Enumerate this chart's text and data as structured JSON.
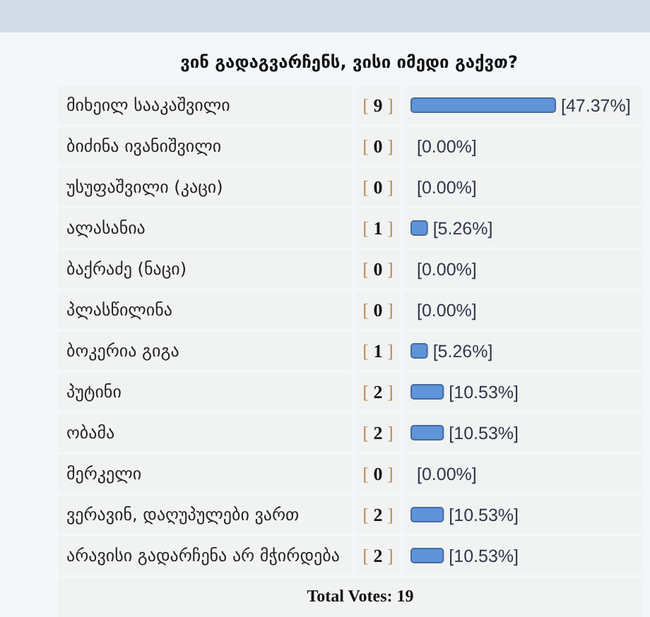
{
  "chart_data": {
    "type": "bar",
    "orientation": "horizontal",
    "title": "ვინ გადაგვარჩენს, ვისი იმედი გაქვთ?",
    "categories": [
      "მიხეილ სააკაშვილი",
      "ბიძინა ივანიშვილი",
      "უსუფაშვილი (კაცი)",
      "ალასანია",
      "ბაქრაძე (ნაცი)",
      "პლასწილინა",
      "ბოკერია გიგა",
      "პუტინი",
      "ობამა",
      "მერკელი",
      "ვერავინ, დაღუპულები ვართ",
      "არავისი გადარჩენა არ მჭირდება"
    ],
    "values": [
      9,
      0,
      0,
      1,
      0,
      0,
      1,
      2,
      2,
      0,
      2,
      2
    ],
    "color": "#5f94d9",
    "value_labels": [
      "[ 9 ]",
      "[ 0 ]",
      "[ 0 ]",
      "[ 1 ]",
      "[ 0 ]",
      "[ 0 ]",
      "[ 1 ]",
      "[ 2 ]",
      "[ 2 ]",
      "[ 0 ]",
      "[ 2 ]",
      "[ 2 ]"
    ],
    "annotations": [
      {
        "text": "[47.37%]",
        "x": 9,
        "y": "მიხეილ სააკაშვილი"
      },
      {
        "text": "[0.00%]",
        "x": 0,
        "y": "ბიძინა ივანიშვილი"
      },
      {
        "text": "[0.00%]",
        "x": 0,
        "y": "უსუფაშვილი (კაცი)"
      },
      {
        "text": "[5.26%]",
        "x": 1,
        "y": "ალასანია"
      },
      {
        "text": "[0.00%]",
        "x": 0,
        "y": "ბაქრაძე (ნაცი)"
      },
      {
        "text": "[0.00%]",
        "x": 0,
        "y": "პლასწილინა"
      },
      {
        "text": "[5.26%]",
        "x": 1,
        "y": "ბოკერია გიგა"
      },
      {
        "text": "[10.53%]",
        "x": 2,
        "y": "პუტინი"
      },
      {
        "text": "[10.53%]",
        "x": 2,
        "y": "ობამა"
      },
      {
        "text": "[0.00%]",
        "x": 0,
        "y": "მერკელი"
      },
      {
        "text": "[10.53%]",
        "x": 2,
        "y": "ვერავინ, დაღუპულები ვართ"
      },
      {
        "text": "[10.53%]",
        "x": 2,
        "y": "არავისი გადარჩენა არ მჭირდება"
      },
      "Total Votes: 19"
    ]
  }
}
